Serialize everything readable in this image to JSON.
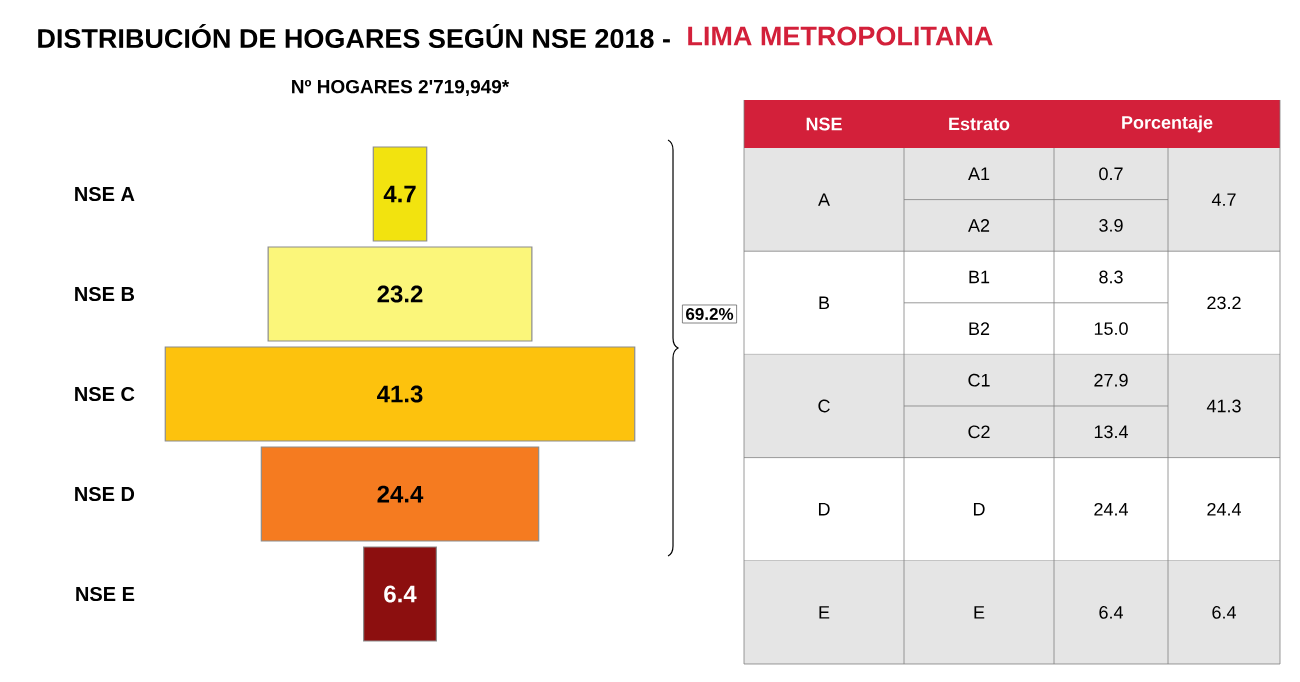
{
  "chart_data": [
    {
      "type": "other",
      "title": "DISTRIBUCIÓN DE HOGARES SEGÚN NSE 2018 -",
      "categories": [
        "NSE A",
        "NSE B",
        "NSE C",
        "NSE D",
        "NSE E"
      ],
      "values": [
        4.7,
        23.2,
        41.3,
        24.4,
        6.4
      ],
      "colors": [
        "#f2e30f",
        "#fbf67a",
        "#fdc20d",
        "#f57b20",
        "#8c0f0f"
      ],
      "data_labels": true,
      "annotations": [
        "Nº HOGARES 2'719,949*",
        "69.2%"
      ]
    },
    {
      "type": "other",
      "subtitle": "LIMA METROPOLITANA",
      "annotations": [
        "NSE",
        "Estrato",
        "Porcentaje"
      ],
      "y2_categories": [
        "A",
        null,
        "B",
        null,
        "C",
        null,
        "D",
        "E"
      ],
      "categories": [
        "A1",
        "A2",
        "B1",
        "B2",
        "C1",
        "C2",
        "D",
        "E"
      ],
      "values": [
        0.7,
        3.9,
        8.3,
        15.0,
        27.9,
        13.4,
        24.4,
        6.4
      ],
      "value_labels": [
        "0.7",
        "3.9",
        "8.3",
        "15.0",
        "27.9",
        "13.4",
        "24.4",
        "6.4"
      ],
      "totals": [
        "4.7",
        null,
        "23.2",
        null,
        "41.3",
        null,
        "24.4",
        "6.4"
      ]
    }
  ]
}
